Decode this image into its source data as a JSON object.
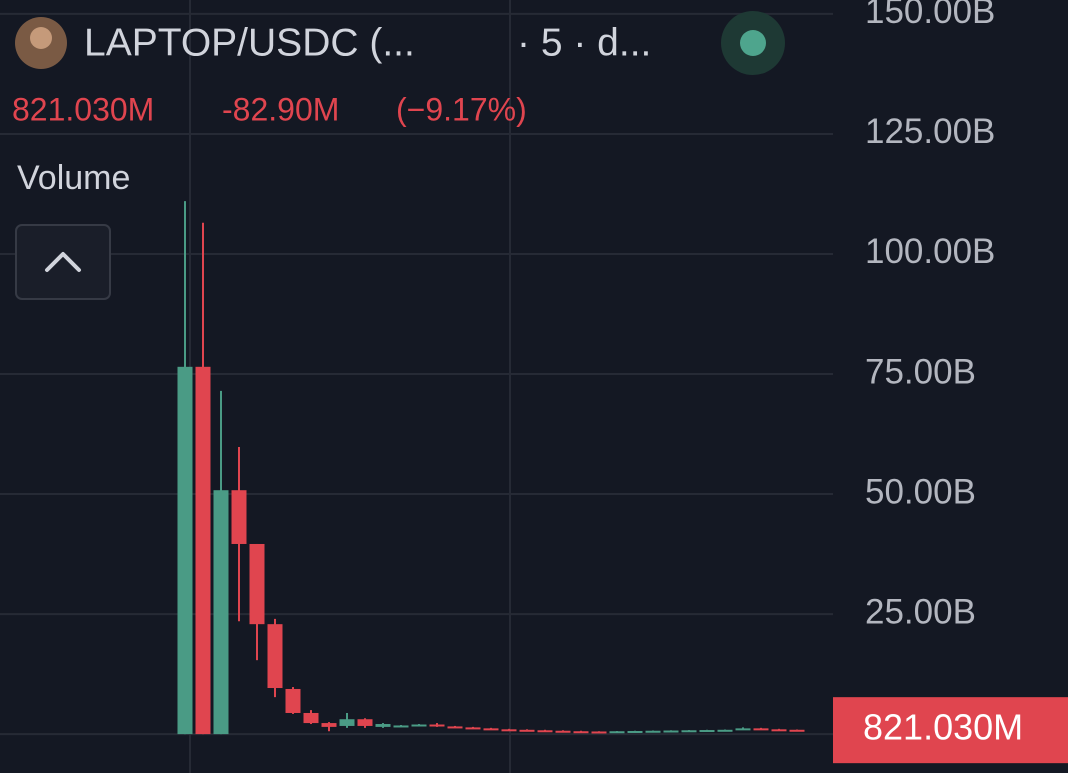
{
  "chart_data": {
    "type": "candlestick",
    "title": "LAPTOP/USDC (...",
    "subtitle": "· 5 · d...",
    "indicator_label": "Volume",
    "last_value": {
      "value": 0.82103,
      "label": "821.030M"
    },
    "change": {
      "value": -0.0829,
      "label": "-82.90M"
    },
    "change_pct": {
      "value": -9.17,
      "label": "(−9.17%)"
    },
    "up_color": "#4a9b85",
    "down_color": "#e0454f",
    "grid": true,
    "ylim": [
      -8.1,
      152.9
    ],
    "yticks": [
      {
        "value": 25,
        "label": "25.00B"
      },
      {
        "value": 50,
        "label": "50.00B"
      },
      {
        "value": 75,
        "label": "75.00B"
      },
      {
        "value": 100,
        "label": "100.00B"
      },
      {
        "value": 125,
        "label": "125.00B"
      },
      {
        "value": 150,
        "label": "150.00B"
      }
    ],
    "categories": [
      null,
      null,
      null,
      null,
      null,
      null,
      null,
      null,
      null,
      null,
      null,
      null,
      null,
      null,
      null,
      null,
      null,
      null,
      null,
      null,
      null,
      null,
      null,
      null,
      null,
      null,
      null,
      null,
      null,
      null,
      null,
      null,
      null,
      null,
      null
    ],
    "open": [
      0,
      76.5,
      0,
      50.8,
      39.6,
      22.9,
      9.4,
      4.4,
      2.3,
      1.7,
      3.1,
      1.5,
      1.6,
      1.8,
      2.0,
      1.6,
      1.4,
      1.2,
      1.0,
      0.9,
      0.8,
      0.7,
      0.6,
      0.55,
      0.5,
      0.6,
      0.65,
      0.7,
      0.75,
      0.8,
      0.85,
      0.9,
      1.2,
      1.0,
      0.90393
    ],
    "high": [
      111,
      106.5,
      71.5,
      59.8,
      39.6,
      24,
      9.8,
      5,
      2.5,
      4.4,
      3.3,
      2.3,
      1.9,
      2.1,
      2.3,
      1.7,
      1.5,
      1.3,
      1.1,
      1.0,
      0.9,
      0.8,
      0.7,
      0.6,
      0.65,
      0.7,
      0.75,
      0.8,
      0.85,
      0.9,
      0.95,
      1.4,
      1.3,
      1.1,
      0.95
    ],
    "low": [
      0,
      0,
      0,
      23.5,
      15.4,
      7.7,
      4.2,
      2.1,
      0.6,
      1.3,
      1.3,
      1.3,
      1.5,
      1.7,
      1.5,
      1.3,
      1.1,
      0.9,
      0.8,
      0.7,
      0.6,
      0.5,
      0.5,
      0.45,
      0.45,
      0.55,
      0.6,
      0.65,
      0.7,
      0.75,
      0.8,
      0.85,
      0.9,
      0.85,
      0.75
    ],
    "close": [
      76.5,
      0,
      50.8,
      39.6,
      22.9,
      9.6,
      4.4,
      2.3,
      1.5,
      3.1,
      1.7,
      2.1,
      1.8,
      2.0,
      1.6,
      1.4,
      1.2,
      1.0,
      0.9,
      0.8,
      0.7,
      0.6,
      0.55,
      0.5,
      0.6,
      0.65,
      0.7,
      0.75,
      0.8,
      0.85,
      0.9,
      1.2,
      1.0,
      0.90393,
      0.82103
    ]
  }
}
